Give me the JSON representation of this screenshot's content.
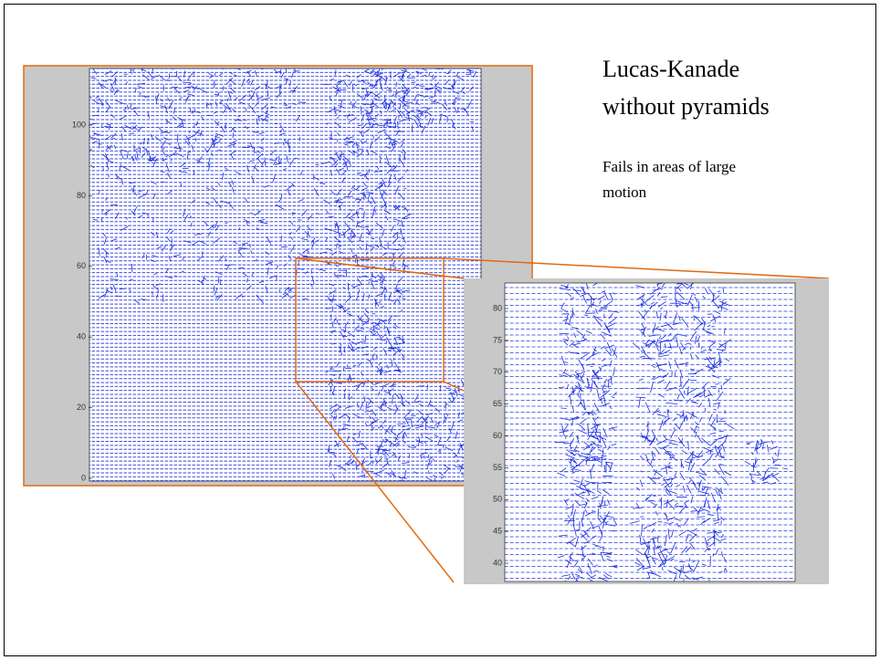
{
  "title": {
    "lines": [
      "Lucas-Kanade",
      "without pyramids"
    ]
  },
  "note": {
    "lines": [
      "Fails in areas of large",
      "motion"
    ]
  },
  "main_plot": {
    "yticks": [
      0,
      20,
      40,
      60,
      80,
      100
    ]
  },
  "inset_plot": {
    "yticks": [
      40,
      45,
      50,
      55,
      60,
      65,
      70,
      75,
      80
    ]
  }
}
